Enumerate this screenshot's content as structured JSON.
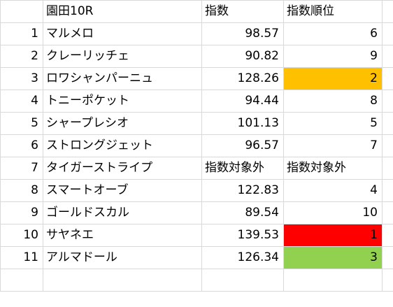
{
  "sheet": {
    "header": {
      "race": "園田10R",
      "score": "指数",
      "rank": "指数順位"
    },
    "rows": [
      {
        "num": "1",
        "name": "マルメロ",
        "score": "98.57",
        "rank": "6",
        "fill": ""
      },
      {
        "num": "2",
        "name": "クレーリッチェ",
        "score": "90.82",
        "rank": "9",
        "fill": ""
      },
      {
        "num": "3",
        "name": "ロワシャンパーニュ",
        "score": "128.26",
        "rank": "2",
        "fill": "#ffc000"
      },
      {
        "num": "4",
        "name": "トニーポケット",
        "score": "94.44",
        "rank": "8",
        "fill": ""
      },
      {
        "num": "5",
        "name": "シャープレシオ",
        "score": "101.13",
        "rank": "5",
        "fill": ""
      },
      {
        "num": "6",
        "name": "ストロングジェット",
        "score": "96.57",
        "rank": "7",
        "fill": ""
      },
      {
        "num": "7",
        "name": "タイガーストライプ",
        "score": "指数対象外",
        "rank": "指数対象外",
        "fill": "",
        "excluded": true
      },
      {
        "num": "8",
        "name": "スマートオーブ",
        "score": "122.83",
        "rank": "4",
        "fill": ""
      },
      {
        "num": "9",
        "name": "ゴールドスカル",
        "score": "89.54",
        "rank": "10",
        "fill": ""
      },
      {
        "num": "10",
        "name": "サヤネエ",
        "score": "139.53",
        "rank": "1",
        "fill": "#ff0000"
      },
      {
        "num": "11",
        "name": "アルマドール",
        "score": "126.34",
        "rank": "3",
        "fill": "#92d050"
      }
    ]
  }
}
